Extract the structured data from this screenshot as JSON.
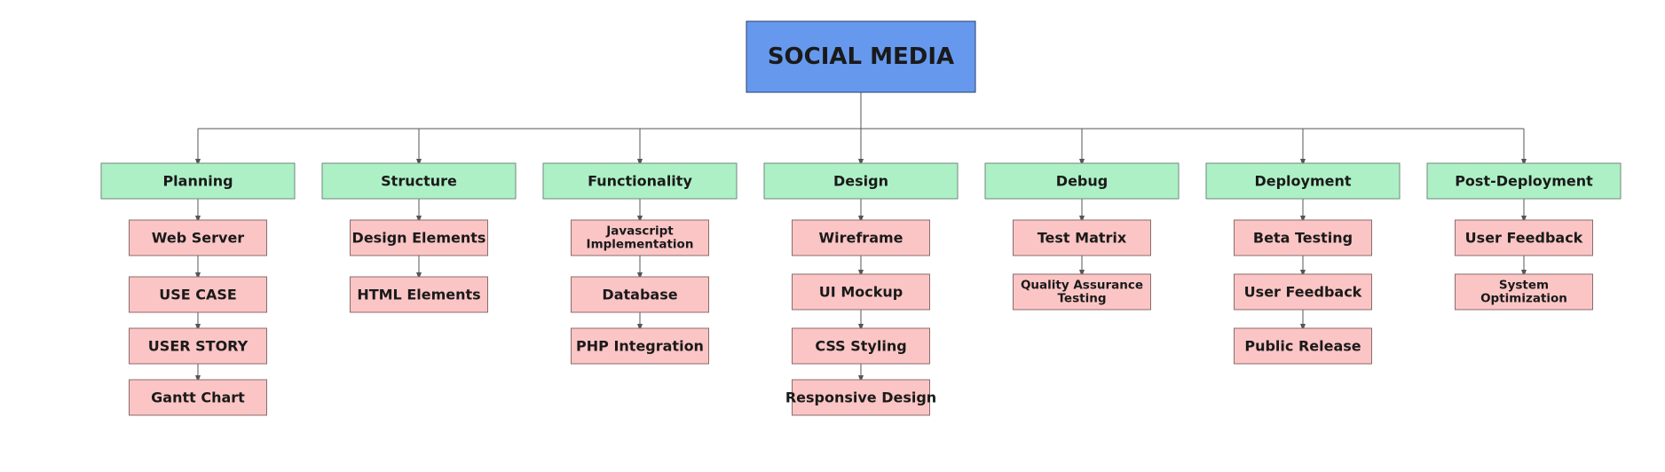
{
  "root": {
    "label": "SOCIAL MEDIA",
    "color": "#6699ee"
  },
  "colors": {
    "category_fill": "#aef0c6",
    "category_stroke": "#6c8a78",
    "item_fill": "#fcc5c5",
    "item_stroke": "#8a6b6b",
    "connector": "#555555"
  },
  "categories": [
    {
      "label": "Planning",
      "items": [
        [
          "Web Server"
        ],
        [
          "USE CASE"
        ],
        [
          "USER STORY"
        ],
        [
          "Gantt Chart"
        ]
      ]
    },
    {
      "label": "Structure",
      "items": [
        [
          "Design Elements"
        ],
        [
          "HTML Elements"
        ]
      ]
    },
    {
      "label": "Functionality",
      "items": [
        [
          "Javascript",
          "Implementation"
        ],
        [
          "Database"
        ],
        [
          "PHP Integration"
        ]
      ]
    },
    {
      "label": "Design",
      "items": [
        [
          "Wireframe"
        ],
        [
          "UI Mockup"
        ],
        [
          "CSS Styling"
        ],
        [
          "Responsive Design"
        ]
      ]
    },
    {
      "label": "Debug",
      "items": [
        [
          "Test Matrix"
        ],
        [
          "Quality Assurance",
          "Testing"
        ]
      ]
    },
    {
      "label": "Deployment",
      "items": [
        [
          "Beta Testing"
        ],
        [
          "User Feedback"
        ],
        [
          "Public Release"
        ]
      ]
    },
    {
      "label": "Post-Deployment",
      "items": [
        [
          "User Feedback"
        ],
        [
          "System",
          "Optimization"
        ]
      ]
    }
  ]
}
